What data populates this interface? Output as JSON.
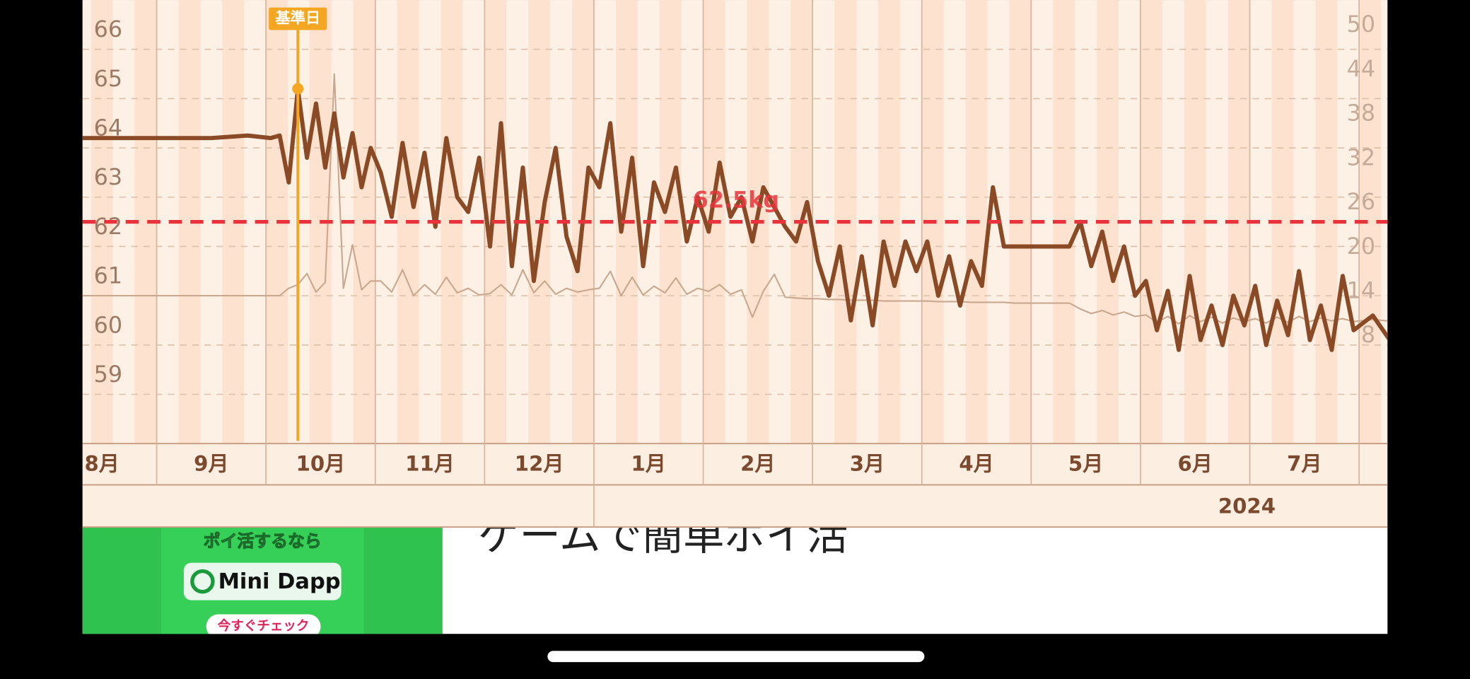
{
  "chart_data": {
    "type": "line",
    "categories": [
      "8月",
      "9月",
      "10月",
      "11月",
      "12月",
      "1月",
      "2月",
      "3月",
      "4月",
      "5月",
      "6月",
      "7月",
      null
    ],
    "year_label": "2024",
    "ylim": [
      58,
      67
    ],
    "yticks": [
      59,
      60,
      61,
      62,
      63,
      64,
      65,
      66
    ],
    "y2lim": [
      -4,
      56
    ],
    "y2ticks": [
      8,
      14,
      20,
      26,
      32,
      38,
      44,
      50
    ],
    "grid": true,
    "target": 62.5,
    "target_label": "62.5kg",
    "target_color": "#e8333c",
    "reference_label": "基準日",
    "reference_color": "#f5a623",
    "series": [
      {
        "color": "#8b4a26",
        "values": [
          [
            64.2,
            64.2
          ],
          [
            64.2,
            64.2,
            64.25
          ],
          [
            64.2,
            64.25,
            63.3,
            65.2,
            63.8,
            64.9,
            63.6,
            64.7,
            63.4,
            64.3,
            63.2,
            64.0
          ],
          [
            63.5,
            62.6,
            64.1,
            62.8,
            63.9,
            62.4,
            64.2,
            63.0,
            62.7,
            63.8
          ],
          [
            62.0,
            64.5,
            61.6,
            63.6,
            61.3,
            62.9,
            64.0,
            62.2,
            61.5,
            63.6
          ],
          [
            63.2,
            64.5,
            62.3,
            63.8,
            61.6,
            63.3,
            62.7,
            63.6,
            62.1,
            63.0
          ],
          [
            62.3,
            63.7,
            62.6,
            63.0,
            62.1,
            63.2,
            62.8,
            62.4,
            62.1,
            62.9
          ],
          [
            61.7,
            61.0,
            62.0,
            60.5,
            61.8,
            60.4,
            62.1,
            61.2,
            62.1,
            61.5
          ],
          [
            62.1,
            61.0,
            61.8,
            60.8,
            61.7,
            61.2,
            63.2,
            62.0,
            62.0,
            62.0
          ],
          [
            62.0,
            62.0,
            62.0,
            62.0,
            62.5,
            61.6,
            62.3,
            61.3,
            62.0,
            61.0
          ],
          [
            61.3,
            60.3,
            61.1,
            59.9,
            61.4,
            60.1,
            60.8,
            60.0,
            61.0,
            60.4
          ],
          [
            61.2,
            60.0,
            60.9,
            60.2,
            61.5,
            60.1,
            60.8,
            59.9,
            61.4,
            60.3
          ],
          [
            60.6,
            59.8,
            60.7,
            59.7
          ]
        ]
      },
      {
        "color": "#c9a88f",
        "axis": "y2",
        "values": [
          [
            16,
            16
          ],
          [
            16,
            16,
            16
          ],
          [
            16,
            16,
            17,
            17.5,
            19,
            16.5,
            17.8,
            46,
            17,
            22.9,
            16.8,
            18
          ],
          [
            18,
            16.5,
            19.5,
            16,
            17.5,
            16.2,
            18.5,
            16.4,
            17,
            16.1
          ],
          [
            16.3,
            17.5,
            16.1,
            19.5,
            16.4,
            18,
            16.2,
            17,
            16.5,
            16.8
          ],
          [
            17,
            19.3,
            16,
            18.5,
            16.1,
            17.3,
            16.4,
            18.4,
            16.2,
            17
          ],
          [
            16.6,
            17.5,
            16.2,
            16.8,
            13.1,
            16.6,
            18.9,
            15.8,
            15.7,
            15.6
          ],
          [
            15.6,
            15.5,
            15.5,
            15.4,
            15.4,
            15.4,
            15.3,
            15.3,
            15.3,
            15.3
          ],
          [
            15.3,
            15.2,
            15.2,
            15.2,
            15.1,
            15.1,
            15.1,
            15.1,
            15.0,
            15.0
          ],
          [
            15.0,
            15.0,
            15.0,
            15.0,
            14.2,
            13.6,
            14.0,
            13.4,
            13.8,
            13.2
          ],
          [
            13.4,
            12.4,
            13.2,
            12.2,
            13.3,
            12.5,
            13.1,
            12.3,
            13.0,
            12.5
          ],
          [
            12.9,
            12.3,
            13.1,
            12.4,
            13.2,
            12.5,
            13.0,
            12.6,
            12.9,
            12.5
          ],
          [
            12.8,
            12.4,
            12.9,
            12.6
          ]
        ]
      }
    ]
  },
  "ad": {
    "headline": "ポイ活するなら",
    "button": "Mini Dapp",
    "cta": "今すぐチェック",
    "title": "ゲームで簡単ポイ活"
  }
}
